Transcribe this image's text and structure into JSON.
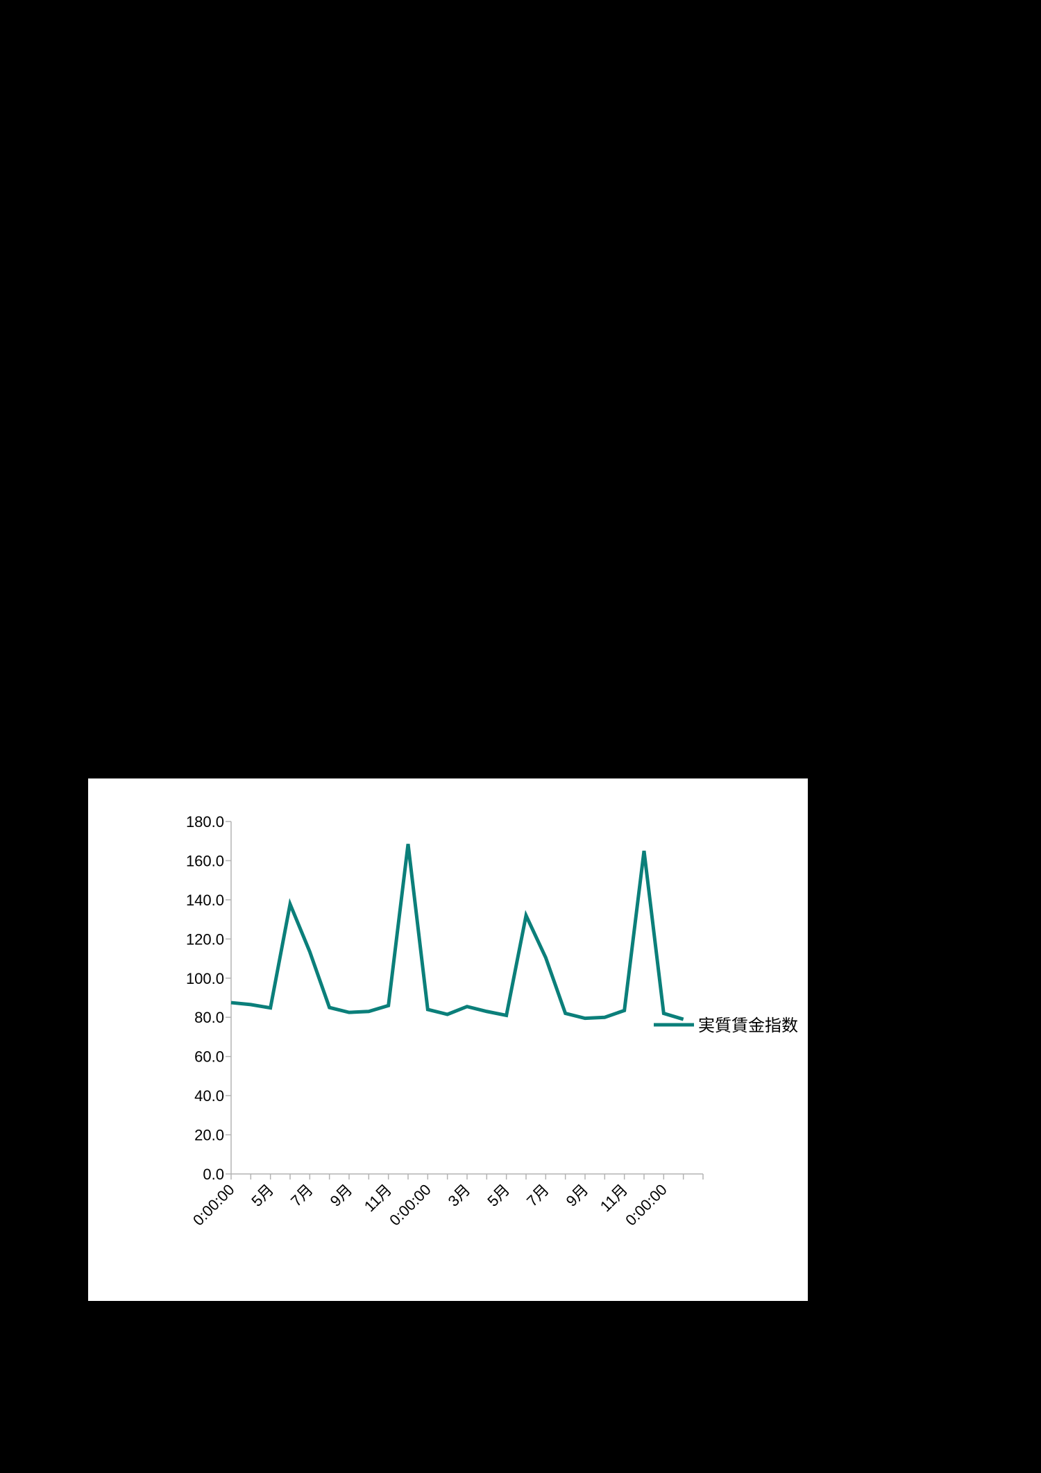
{
  "colors": {
    "background": "#000000",
    "panel": "#ffffff",
    "series": "#0b7f7a",
    "axis": "#b3b3b3"
  },
  "chart_data": {
    "type": "line",
    "title": "",
    "xlabel": "",
    "ylabel": "",
    "ylim": [
      0,
      180
    ],
    "yticks": [
      "0.0",
      "20.0",
      "40.0",
      "60.0",
      "80.0",
      "100.0",
      "120.0",
      "140.0",
      "160.0",
      "180.0"
    ],
    "x_tick_labels": [
      "0:00:00",
      "5月",
      "7月",
      "9月",
      "11月",
      "0:00:00",
      "3月",
      "5月",
      "7月",
      "9月",
      "11月",
      "0:00:00"
    ],
    "x_tick_positions": [
      0,
      2,
      4,
      6,
      8,
      10,
      12,
      14,
      16,
      18,
      20,
      22
    ],
    "legend_position": "right",
    "series": [
      {
        "name": "実質賃金指数",
        "values": [
          87.5,
          86.5,
          84.8,
          137.8,
          113.5,
          85.0,
          82.5,
          83.0,
          86.0,
          168.5,
          84.0,
          81.5,
          85.5,
          83.0,
          81.0,
          132.0,
          110.5,
          82.0,
          79.5,
          80.0,
          83.5,
          165.0,
          82.0,
          79.0
        ]
      }
    ]
  }
}
